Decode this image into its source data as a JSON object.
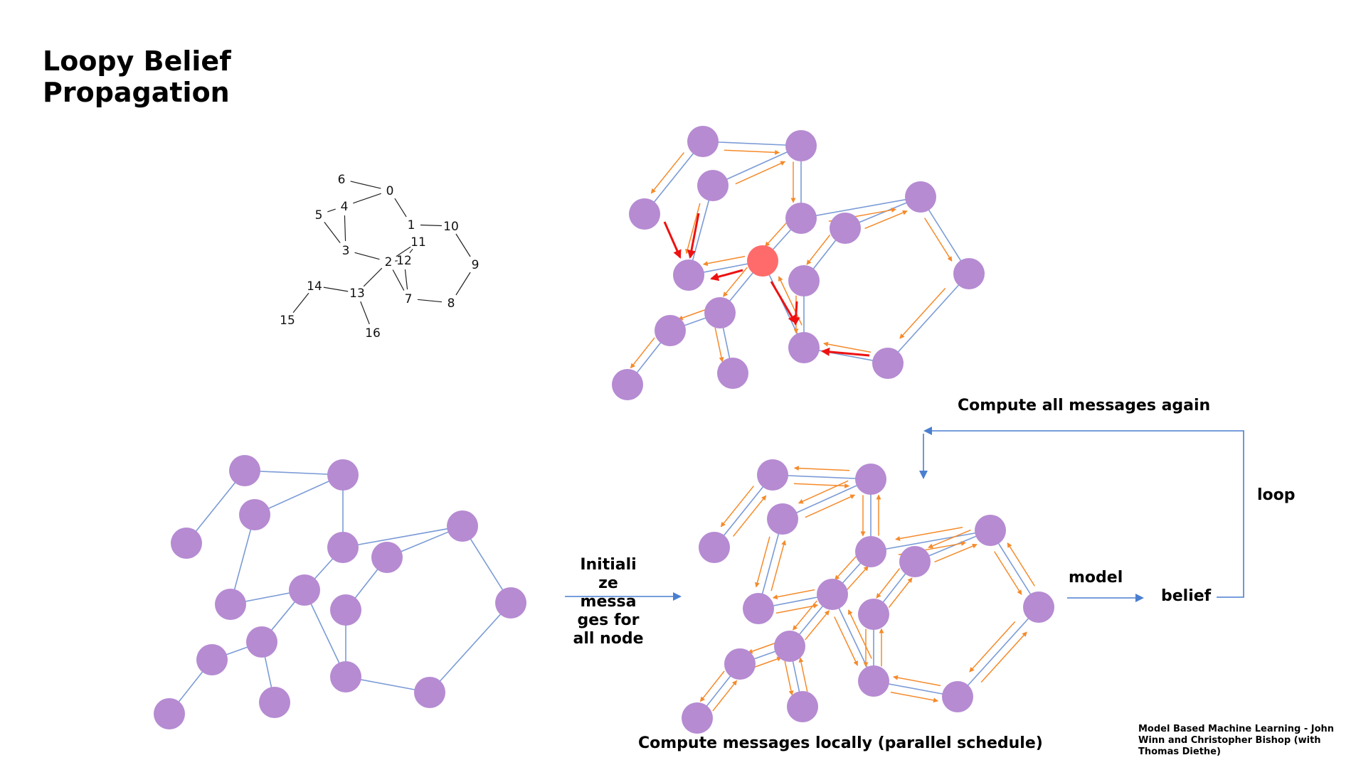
{
  "title": "Loopy Belief Propagation",
  "labels": {
    "initialize": "Initiali ze messa ges for all node",
    "model": "model",
    "belief": "belief",
    "loop": "loop",
    "compute_again": "Compute all messages again",
    "compute_locally": "Compute messages locally (parallel schedule)",
    "credit": "Model Based Machine Learning - John Winn and Christopher Bishop (with Thomas Diethe)"
  },
  "numbered_graph": {
    "node_labels": [
      "0",
      "1",
      "2",
      "3",
      "4",
      "5",
      "6",
      "7",
      "8",
      "9",
      "10",
      "11",
      "12",
      "13",
      "14",
      "15",
      "16"
    ]
  },
  "colors": {
    "node": "#b68bd2",
    "highlight_node": "#ff6b6b",
    "edge": "#7b9bd6",
    "message": "#f58a2a",
    "active_message": "#ee1111",
    "loop_arrow": "#4a7fd0"
  }
}
